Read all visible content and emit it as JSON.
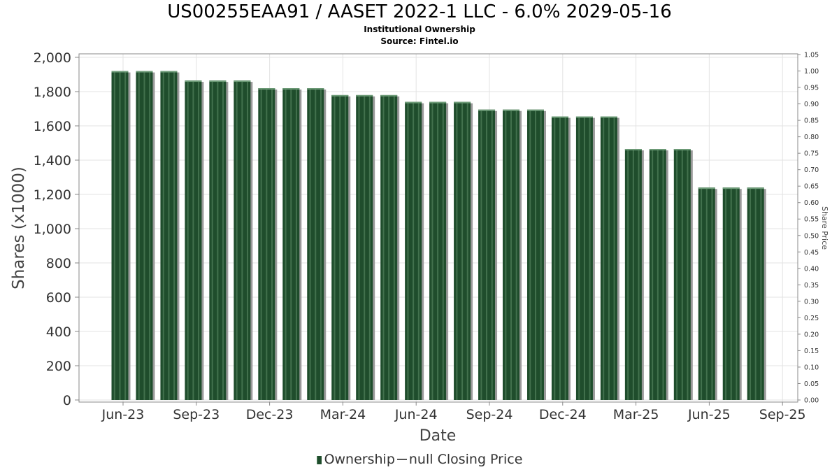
{
  "header": {
    "title": "US00255EAA91 / AASET 2022-1 LLC - 6.0% 2029-05-16",
    "subtitle1": "Institutional Ownership",
    "subtitle2": "Source: Fintel.io"
  },
  "legend": {
    "ownership_label": "Ownership",
    "price_label": "null Closing Price"
  },
  "colors": {
    "bar": "#1f4d2c",
    "bar_highlight": "#5f8f6a",
    "bar_shadow": "#9a9a9a",
    "grid": "#e3e3e3"
  },
  "chart_data": {
    "type": "bar",
    "xlabel": "Date",
    "ylabel": "Shares (x1000)",
    "y2label": "Share Price",
    "ylim": [
      0,
      2000
    ],
    "y2lim": [
      0,
      1.05
    ],
    "yticks": [
      "0",
      "200",
      "400",
      "600",
      "800",
      "1,000",
      "1,200",
      "1,400",
      "1,600",
      "1,800",
      "2,000"
    ],
    "y2ticks": [
      "0.00",
      "0.05",
      "0.10",
      "0.15",
      "0.20",
      "0.25",
      "0.30",
      "0.35",
      "0.40",
      "0.45",
      "0.50",
      "0.55",
      "0.60",
      "0.65",
      "0.70",
      "0.75",
      "0.80",
      "0.85",
      "0.90",
      "0.95",
      "1.00",
      "1.05"
    ],
    "xticks": [
      "Jun-23",
      "Sep-23",
      "Dec-23",
      "Mar-24",
      "Jun-24",
      "Sep-24",
      "Dec-24",
      "Mar-25",
      "Jun-25",
      "Sep-25"
    ],
    "grid": true,
    "legend_position": "bottom",
    "series": [
      {
        "name": "Ownership",
        "values": [
          1920,
          1920,
          1920,
          1865,
          1865,
          1865,
          1820,
          1820,
          1820,
          1780,
          1780,
          1780,
          1740,
          1740,
          1740,
          1695,
          1695,
          1695,
          1655,
          1655,
          1655,
          1465,
          1465,
          1465,
          1240,
          1240,
          1240
        ]
      }
    ]
  }
}
